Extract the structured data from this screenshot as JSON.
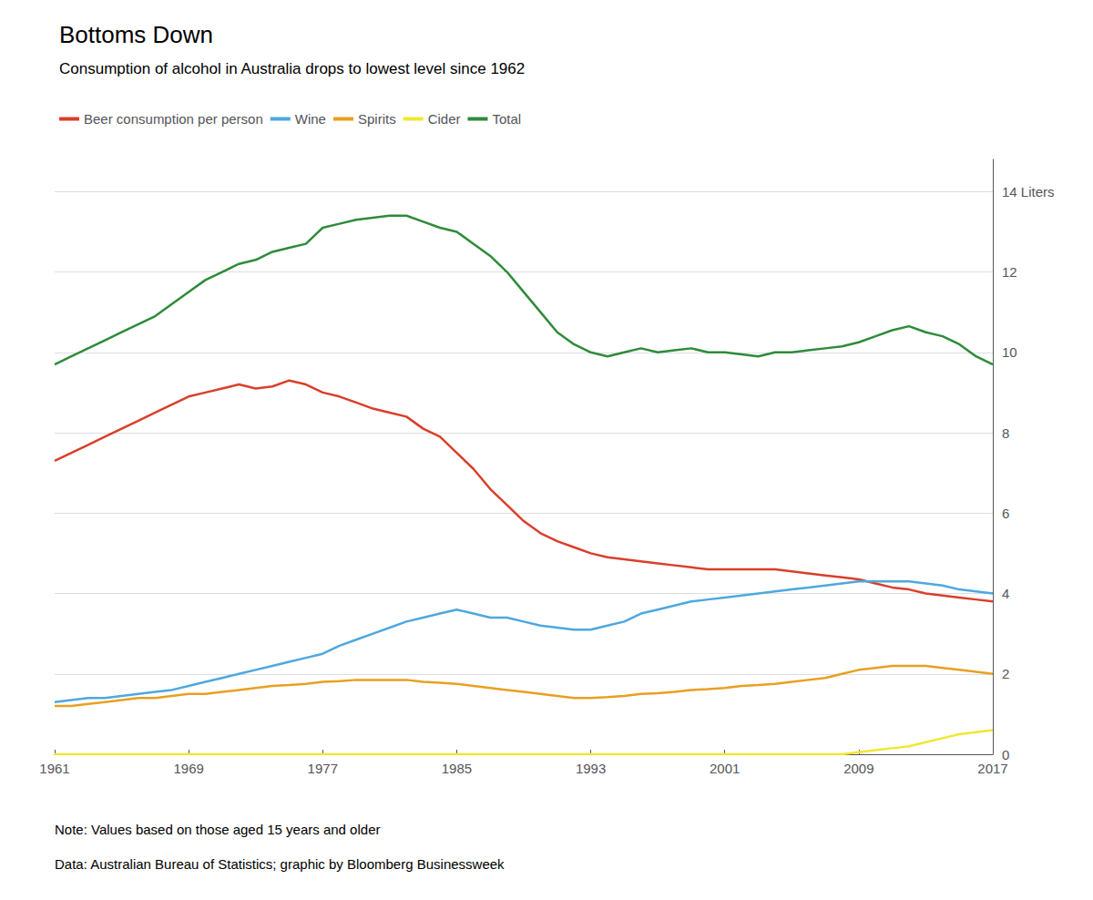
{
  "chart_data": {
    "type": "line",
    "title": "Bottoms Down",
    "subtitle": "Consumption of alcohol in Australia drops to lowest level since 1962",
    "annotations": [
      "Note: Values based on those aged 15 years and older",
      "Data: Australian Bureau of Statistics; graphic by Bloomberg Businessweek"
    ],
    "x": [
      1961,
      1962,
      1963,
      1964,
      1965,
      1966,
      1967,
      1968,
      1969,
      1970,
      1971,
      1972,
      1973,
      1974,
      1975,
      1976,
      1977,
      1978,
      1979,
      1980,
      1981,
      1982,
      1983,
      1984,
      1985,
      1986,
      1987,
      1988,
      1989,
      1990,
      1991,
      1992,
      1993,
      1994,
      1995,
      1996,
      1997,
      1998,
      1999,
      2000,
      2001,
      2002,
      2003,
      2004,
      2005,
      2006,
      2007,
      2008,
      2009,
      2010,
      2011,
      2012,
      2013,
      2014,
      2015,
      2016,
      2017
    ],
    "xlim": [
      1961,
      2017
    ],
    "xticks": [
      1961,
      1969,
      1977,
      1985,
      1993,
      2001,
      2009,
      2017
    ],
    "ylim": [
      0,
      14.8
    ],
    "yticks": [
      0,
      2,
      4,
      6,
      8,
      10,
      12,
      {
        "value": 14,
        "label": "14 Liters"
      }
    ],
    "grid": true,
    "legend": "upper left",
    "series": [
      {
        "name": "Beer consumption per person",
        "color": "#D93F2B",
        "values": [
          7.3,
          7.5,
          7.7,
          7.9,
          8.1,
          8.3,
          8.5,
          8.7,
          8.9,
          9.0,
          9.1,
          9.2,
          9.1,
          9.15,
          9.3,
          9.2,
          9.0,
          8.9,
          8.75,
          8.6,
          8.5,
          8.4,
          8.1,
          7.9,
          7.5,
          7.1,
          6.6,
          6.2,
          5.8,
          5.5,
          5.3,
          5.15,
          5.0,
          4.9,
          4.85,
          4.8,
          4.75,
          4.7,
          4.65,
          4.6,
          4.6,
          4.6,
          4.6,
          4.6,
          4.55,
          4.5,
          4.45,
          4.4,
          4.35,
          4.25,
          4.15,
          4.1,
          4.0,
          3.95,
          3.9,
          3.85,
          3.8
        ]
      },
      {
        "name": "Wine",
        "color": "#4EA8DE",
        "values": [
          1.3,
          1.35,
          1.4,
          1.4,
          1.45,
          1.5,
          1.55,
          1.6,
          1.7,
          1.8,
          1.9,
          2.0,
          2.1,
          2.2,
          2.3,
          2.4,
          2.5,
          2.7,
          2.85,
          3.0,
          3.15,
          3.3,
          3.4,
          3.5,
          3.6,
          3.5,
          3.4,
          3.4,
          3.3,
          3.2,
          3.15,
          3.1,
          3.1,
          3.2,
          3.3,
          3.5,
          3.6,
          3.7,
          3.8,
          3.85,
          3.9,
          3.95,
          4.0,
          4.05,
          4.1,
          4.15,
          4.2,
          4.25,
          4.3,
          4.3,
          4.3,
          4.3,
          4.25,
          4.2,
          4.1,
          4.05,
          4.0
        ]
      },
      {
        "name": "Spirits",
        "color": "#E8A020",
        "values": [
          1.2,
          1.2,
          1.25,
          1.3,
          1.35,
          1.4,
          1.4,
          1.45,
          1.5,
          1.5,
          1.55,
          1.6,
          1.65,
          1.7,
          1.72,
          1.75,
          1.8,
          1.82,
          1.85,
          1.85,
          1.85,
          1.85,
          1.8,
          1.78,
          1.75,
          1.7,
          1.65,
          1.6,
          1.55,
          1.5,
          1.45,
          1.4,
          1.4,
          1.42,
          1.45,
          1.5,
          1.52,
          1.55,
          1.6,
          1.62,
          1.65,
          1.7,
          1.72,
          1.75,
          1.8,
          1.85,
          1.9,
          2.0,
          2.1,
          2.15,
          2.2,
          2.2,
          2.2,
          2.15,
          2.1,
          2.05,
          2.0
        ]
      },
      {
        "name": "Cider",
        "color": "#F0E830",
        "values": [
          0,
          0,
          0,
          0,
          0,
          0,
          0,
          0,
          0,
          0,
          0,
          0,
          0,
          0,
          0,
          0,
          0,
          0,
          0,
          0,
          0,
          0,
          0,
          0,
          0,
          0,
          0,
          0,
          0,
          0,
          0,
          0,
          0,
          0,
          0,
          0,
          0,
          0,
          0,
          0,
          0,
          0,
          0,
          0,
          0,
          0,
          0,
          0,
          0.05,
          0.1,
          0.15,
          0.2,
          0.3,
          0.4,
          0.5,
          0.55,
          0.6
        ]
      },
      {
        "name": "Total",
        "color": "#2E8B3A",
        "values": [
          9.7,
          9.9,
          10.1,
          10.3,
          10.5,
          10.7,
          10.9,
          11.2,
          11.5,
          11.8,
          12.0,
          12.2,
          12.3,
          12.5,
          12.6,
          12.7,
          13.1,
          13.2,
          13.3,
          13.35,
          13.4,
          13.4,
          13.25,
          13.1,
          13.0,
          12.7,
          12.4,
          12.0,
          11.5,
          11.0,
          10.5,
          10.2,
          10.0,
          9.9,
          10.0,
          10.1,
          10.0,
          10.05,
          10.1,
          10.0,
          10.0,
          9.95,
          9.9,
          10.0,
          10.0,
          10.05,
          10.1,
          10.15,
          10.25,
          10.4,
          10.55,
          10.65,
          10.5,
          10.4,
          10.2,
          9.9,
          9.7
        ]
      }
    ]
  }
}
